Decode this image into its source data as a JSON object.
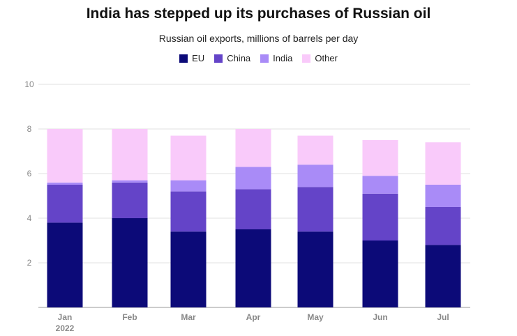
{
  "chart_data": {
    "type": "bar",
    "stacked": true,
    "title": "India has stepped up its purchases of Russian oil",
    "subtitle": "Russian oil exports, millions of barrels per day",
    "categories": [
      "Jan",
      "Feb",
      "Mar",
      "Apr",
      "May",
      "Jun",
      "Jul"
    ],
    "category_sublabels": [
      "2022",
      "",
      "",
      "",
      "",
      "",
      ""
    ],
    "ylim": [
      0,
      10
    ],
    "yticks": [
      "2",
      "4",
      "6",
      "8",
      "10"
    ],
    "series": [
      {
        "name": "EU",
        "color": "#0c0a78",
        "values": [
          3.8,
          4.0,
          3.4,
          3.5,
          3.4,
          3.0,
          2.8
        ]
      },
      {
        "name": "China",
        "color": "#6444c8",
        "values": [
          1.7,
          1.6,
          1.8,
          1.8,
          2.0,
          2.1,
          1.7
        ]
      },
      {
        "name": "India",
        "color": "#a98bf7",
        "values": [
          0.1,
          0.1,
          0.5,
          1.0,
          1.0,
          0.8,
          1.0
        ]
      },
      {
        "name": "Other",
        "color": "#f9cafa",
        "values": [
          2.4,
          2.3,
          2.0,
          1.7,
          1.3,
          1.6,
          1.9
        ]
      }
    ],
    "grid": true,
    "legend": "top-center"
  }
}
